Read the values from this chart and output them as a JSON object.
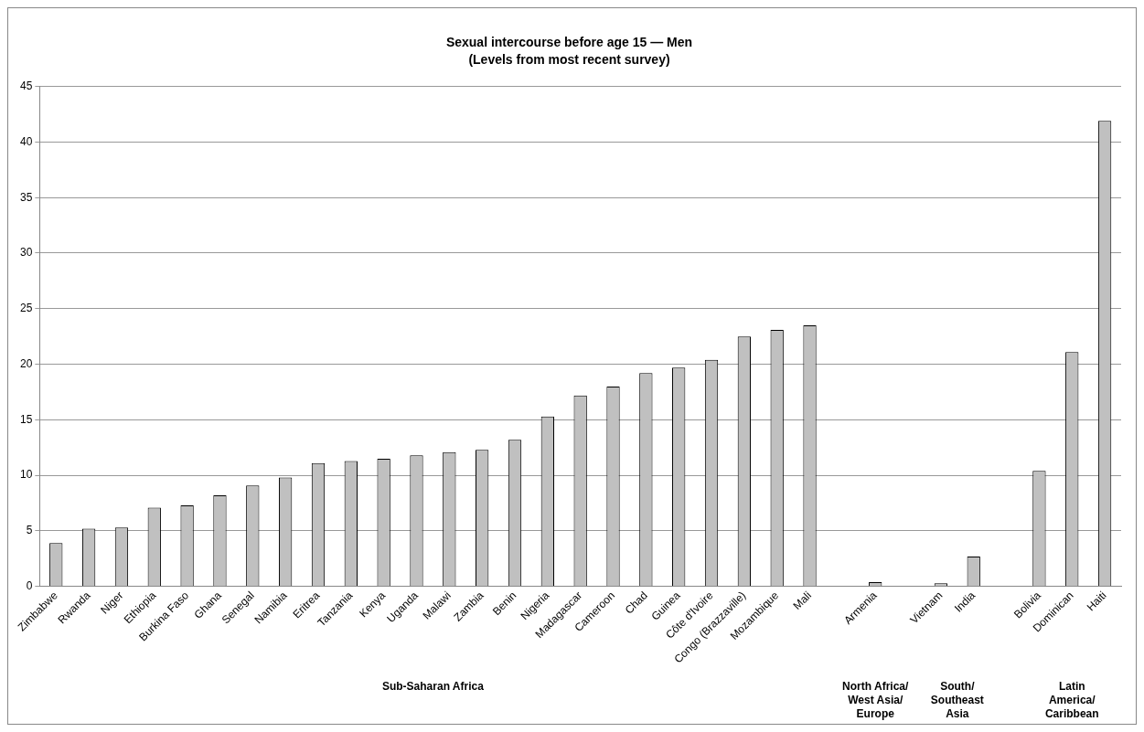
{
  "chart_data": {
    "type": "bar",
    "title": "Sexual intercourse before age 15 — Men",
    "subtitle": "(Levels from most recent survey)",
    "categories": [
      "Zimbabwe",
      "Rwanda",
      "Niger",
      "Ethiopia",
      "Burkina Faso",
      "Ghana",
      "Senegal",
      "Namibia",
      "Eritrea",
      "Tanzania",
      "Kenya",
      "Uganda",
      "Malawi",
      "Zambia",
      "Benin",
      "Nigeria",
      "Madagascar",
      "Cameroon",
      "Chad",
      "Guinea",
      "Côte d'Ivoire",
      "Congo (Brazzaville)",
      "Mozambique",
      "Mali",
      null,
      "Armenia",
      null,
      "Vietnam",
      "India",
      null,
      "Bolivia",
      "Dominican",
      "Haiti"
    ],
    "values": [
      3.9,
      5.2,
      5.3,
      7.1,
      7.3,
      8.2,
      9.1,
      9.8,
      11.1,
      11.3,
      11.5,
      11.8,
      12.1,
      12.3,
      13.2,
      15.3,
      17.2,
      18.0,
      19.2,
      19.7,
      20.4,
      22.5,
      23.1,
      23.5,
      null,
      0.4,
      null,
      0.3,
      2.7,
      null,
      10.4,
      21.1,
      41.9
    ],
    "color": "#c0c0c0",
    "ylim": [
      0,
      45
    ],
    "yticks": [
      0,
      5,
      10,
      15,
      20,
      25,
      30,
      35,
      40,
      45
    ],
    "grid": "y",
    "legend": false,
    "annotations": [
      "Sub-Saharan Africa",
      "North Africa/ West Asia/ Europe",
      "South/ Southeast Asia",
      "Latin America/ Caribbean"
    ]
  }
}
